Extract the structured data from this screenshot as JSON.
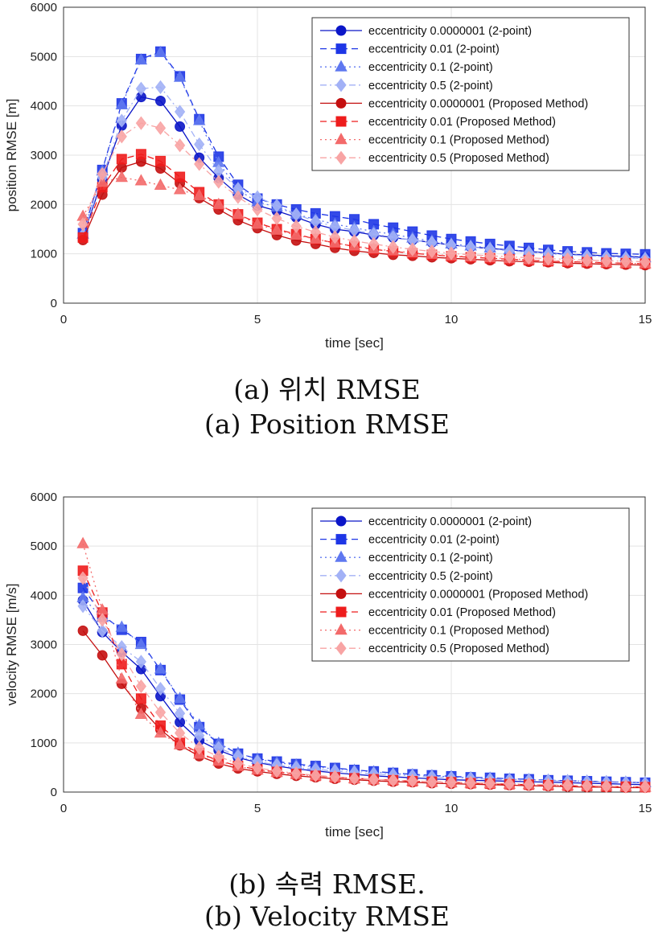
{
  "figure_a": {
    "caption_ko": "(a) 위치 RMSE",
    "caption_en": "(a) Position RMSE"
  },
  "figure_b": {
    "caption_ko": "(b) 속력 RMSE.",
    "caption_en": "(b) Velocity RMSE"
  },
  "series_styles": [
    {
      "color": "#0b16c8",
      "marker": "circle",
      "dash": "",
      "opacity": 1.0
    },
    {
      "color": "#1e36e6",
      "marker": "square",
      "dash": "8,5",
      "opacity": 1.0
    },
    {
      "color": "#5f78f0",
      "marker": "triangle",
      "dash": "2,4",
      "opacity": 1.0
    },
    {
      "color": "#a2b1f6",
      "marker": "diamond",
      "dash": "8,4,2,4",
      "opacity": 1.0
    },
    {
      "color": "#c41010",
      "marker": "circle",
      "dash": "",
      "opacity": 1.0
    },
    {
      "color": "#ee1c1c",
      "marker": "square",
      "dash": "8,5",
      "opacity": 1.0
    },
    {
      "color": "#f36a6a",
      "marker": "triangle",
      "dash": "2,4",
      "opacity": 1.0
    },
    {
      "color": "#f8a4a4",
      "marker": "diamond",
      "dash": "8,4,2,4",
      "opacity": 1.0
    }
  ],
  "chart_data": [
    {
      "type": "line",
      "title": "",
      "xlabel": "time [sec]",
      "ylabel": "position RMSE [m]",
      "xlim": [
        0,
        15
      ],
      "ylim": [
        0,
        6000
      ],
      "xticks": [
        0,
        5,
        10,
        15
      ],
      "yticks": [
        0,
        1000,
        2000,
        3000,
        4000,
        5000,
        6000
      ],
      "grid": true,
      "legend_position": "top-right",
      "x": [
        0.5,
        1,
        1.5,
        2,
        2.5,
        3,
        3.5,
        4,
        4.5,
        5,
        5.5,
        6,
        6.5,
        7,
        7.5,
        8,
        8.5,
        9,
        9.5,
        10,
        10.5,
        11,
        11.5,
        12,
        12.5,
        13,
        13.5,
        14,
        14.5,
        15
      ],
      "series": [
        {
          "name": "eccentricity 0.0000001 (2-point)",
          "values": [
            1350,
            2500,
            3600,
            4180,
            4100,
            3580,
            2950,
            2540,
            2200,
            1980,
            1870,
            1740,
            1600,
            1500,
            1450,
            1380,
            1330,
            1280,
            1230,
            1180,
            1140,
            1110,
            1080,
            1050,
            1020,
            990,
            980,
            960,
            950,
            930
          ]
        },
        {
          "name": "eccentricity 0.01 (2-point)",
          "values": [
            1420,
            2700,
            4050,
            4950,
            5100,
            4600,
            3730,
            2970,
            2400,
            2120,
            2000,
            1900,
            1820,
            1760,
            1700,
            1600,
            1530,
            1450,
            1370,
            1300,
            1250,
            1200,
            1160,
            1120,
            1080,
            1050,
            1030,
            1010,
            1000,
            990
          ]
        },
        {
          "name": "eccentricity 0.1 (2-point)",
          "values": [
            1400,
            2680,
            4020,
            4930,
            5080,
            4580,
            3700,
            2850,
            2300,
            2050,
            1950,
            1800,
            1700,
            1600,
            1530,
            1450,
            1400,
            1320,
            1260,
            1200,
            1160,
            1120,
            1080,
            1050,
            1020,
            990,
            970,
            950,
            940,
            920
          ]
        },
        {
          "name": "eccentricity 0.5 (2-point)",
          "values": [
            1380,
            2550,
            3700,
            4350,
            4380,
            3880,
            3220,
            2680,
            2320,
            2150,
            1980,
            1800,
            1660,
            1550,
            1480,
            1400,
            1340,
            1280,
            1230,
            1180,
            1140,
            1100,
            1060,
            1030,
            1000,
            980,
            960,
            940,
            920,
            900
          ]
        },
        {
          "name": "eccentricity 0.0000001 (Proposed Method)",
          "values": [
            1280,
            2200,
            2750,
            2870,
            2730,
            2430,
            2130,
            1900,
            1680,
            1520,
            1380,
            1270,
            1200,
            1120,
            1060,
            1020,
            980,
            960,
            930,
            910,
            890,
            870,
            850,
            840,
            830,
            810,
            800,
            790,
            780,
            770
          ]
        },
        {
          "name": "eccentricity 0.01 (Proposed Method)",
          "values": [
            1330,
            2350,
            2920,
            3020,
            2880,
            2560,
            2250,
            2000,
            1800,
            1630,
            1500,
            1400,
            1300,
            1220,
            1150,
            1090,
            1050,
            1010,
            980,
            950,
            930,
            910,
            890,
            870,
            850,
            840,
            830,
            820,
            810,
            800
          ]
        },
        {
          "name": "eccentricity 0.1 (Proposed Method)",
          "values": [
            1760,
            2450,
            2550,
            2480,
            2390,
            2300,
            2180,
            2000,
            1800,
            1600,
            1480,
            1380,
            1300,
            1220,
            1160,
            1100,
            1060,
            1020,
            990,
            960,
            940,
            920,
            900,
            880,
            860,
            850,
            840,
            820,
            810,
            800
          ]
        },
        {
          "name": "eccentricity 0.5 (Proposed Method)",
          "values": [
            1600,
            2620,
            3380,
            3650,
            3550,
            3200,
            2820,
            2460,
            2150,
            1900,
            1720,
            1560,
            1440,
            1340,
            1260,
            1200,
            1140,
            1090,
            1050,
            1010,
            980,
            960,
            940,
            920,
            900,
            890,
            870,
            860,
            850,
            840
          ]
        }
      ]
    },
    {
      "type": "line",
      "title": "",
      "xlabel": "time [sec]",
      "ylabel": "velocity RMSE [m/s]",
      "xlim": [
        0,
        15
      ],
      "ylim": [
        0,
        6000
      ],
      "xticks": [
        0,
        5,
        10,
        15
      ],
      "yticks": [
        0,
        1000,
        2000,
        3000,
        4000,
        5000,
        6000
      ],
      "grid": true,
      "legend_position": "top-right",
      "x": [
        0.5,
        1,
        1.5,
        2,
        2.5,
        3,
        3.5,
        4,
        4.5,
        5,
        5.5,
        6,
        6.5,
        7,
        7.5,
        8,
        8.5,
        9,
        9.5,
        10,
        10.5,
        11,
        11.5,
        12,
        12.5,
        13,
        13.5,
        14,
        14.5,
        15
      ],
      "series": [
        {
          "name": "eccentricity 0.0000001 (2-point)",
          "values": [
            3900,
            3250,
            2850,
            2500,
            1950,
            1420,
            1050,
            850,
            700,
            600,
            530,
            470,
            430,
            390,
            360,
            330,
            310,
            290,
            270,
            250,
            240,
            230,
            220,
            210,
            200,
            190,
            180,
            170,
            160,
            150
          ]
        },
        {
          "name": "eccentricity 0.01 (2-point)",
          "values": [
            4150,
            3600,
            3300,
            3050,
            2480,
            1880,
            1320,
            980,
            780,
            680,
            620,
            570,
            530,
            490,
            450,
            420,
            390,
            360,
            340,
            320,
            300,
            290,
            270,
            260,
            240,
            230,
            220,
            210,
            200,
            190
          ]
        },
        {
          "name": "eccentricity 0.1 (2-point)",
          "values": [
            3950,
            3550,
            3350,
            3000,
            2500,
            1900,
            1360,
            990,
            790,
            670,
            600,
            550,
            510,
            470,
            440,
            410,
            380,
            350,
            330,
            310,
            290,
            280,
            260,
            250,
            240,
            230,
            220,
            210,
            200,
            190
          ]
        },
        {
          "name": "eccentricity 0.5 (2-point)",
          "values": [
            3780,
            3280,
            2950,
            2650,
            2100,
            1600,
            1150,
            900,
            730,
            620,
            550,
            500,
            460,
            430,
            400,
            370,
            350,
            330,
            310,
            290,
            280,
            260,
            250,
            240,
            230,
            220,
            210,
            200,
            190,
            180
          ]
        },
        {
          "name": "eccentricity 0.0000001 (Proposed Method)",
          "values": [
            3280,
            2780,
            2200,
            1700,
            1270,
            950,
            730,
            580,
            480,
            420,
            370,
            330,
            300,
            270,
            250,
            230,
            210,
            200,
            180,
            170,
            160,
            150,
            140,
            130,
            120,
            110,
            100,
            100,
            90,
            90
          ]
        },
        {
          "name": "eccentricity 0.01 (Proposed Method)",
          "values": [
            4500,
            3650,
            2600,
            1900,
            1350,
            1000,
            790,
            640,
            530,
            460,
            410,
            370,
            330,
            300,
            280,
            260,
            240,
            220,
            210,
            200,
            180,
            170,
            160,
            150,
            140,
            130,
            120,
            110,
            110,
            100
          ]
        },
        {
          "name": "eccentricity 0.1 (Proposed Method)",
          "values": [
            5050,
            3700,
            2300,
            1580,
            1200,
            960,
            770,
            630,
            520,
            450,
            400,
            360,
            330,
            300,
            270,
            250,
            240,
            220,
            200,
            190,
            180,
            170,
            160,
            150,
            140,
            130,
            120,
            120,
            110,
            100
          ]
        },
        {
          "name": "eccentricity 0.5 (Proposed Method)",
          "values": [
            4350,
            3500,
            2800,
            2150,
            1620,
            1200,
            900,
            720,
            580,
            490,
            430,
            380,
            340,
            310,
            280,
            260,
            240,
            230,
            210,
            200,
            190,
            180,
            170,
            160,
            150,
            140,
            130,
            120,
            110,
            110
          ]
        }
      ]
    }
  ]
}
